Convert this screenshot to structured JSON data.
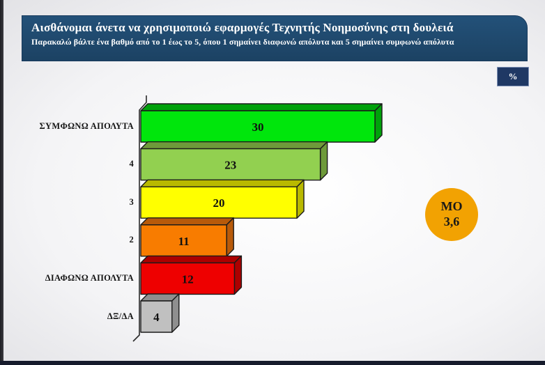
{
  "header": {
    "title": "Αισθάνομαι άνετα να χρησιμοποιώ εφαρμογές Τεχνητής Νοημοσύνης στη δουλειά",
    "subtitle": "Παρακαλώ βάλτε ένα βαθμό από το 1 έως το 5, όπου 1 σημαίνει διαφωνώ απόλυτα και 5 σημαίνει συμφωνώ απόλυτα"
  },
  "unit_badge": "%",
  "mean_badge": {
    "label": "ΜΟ",
    "value": "3,6",
    "color": "#F2A202"
  },
  "chart_data": {
    "type": "bar",
    "orientation": "horizontal",
    "style": "3d",
    "title": "Αισθάνομαι άνετα να χρησιμοποιώ εφαρμογές Τεχνητής Νοημοσύνης στη δουλειά",
    "unit": "%",
    "categories": [
      "ΣΥΜΦΩΝΩ ΑΠΟΛΥΤΑ",
      "4",
      "3",
      "2",
      "ΔΙΑΦΩΝΩ ΑΠΟΛΥΤΑ",
      "ΔΞ/ΔΑ"
    ],
    "values": [
      30,
      23,
      20,
      11,
      12,
      4
    ],
    "bar_colors": [
      "#00E60C",
      "#92D050",
      "#FFFF00",
      "#F87C00",
      "#EE0000",
      "#C0C0C0"
    ],
    "bar_dark_colors": [
      "#00A10B",
      "#6E9A3A",
      "#B9B900",
      "#B85A0A",
      "#AC0000",
      "#8F8F8F"
    ],
    "value_labels": true,
    "xlim": [
      0,
      30
    ],
    "legend": false,
    "gridlines": false,
    "mean": "3,6"
  }
}
